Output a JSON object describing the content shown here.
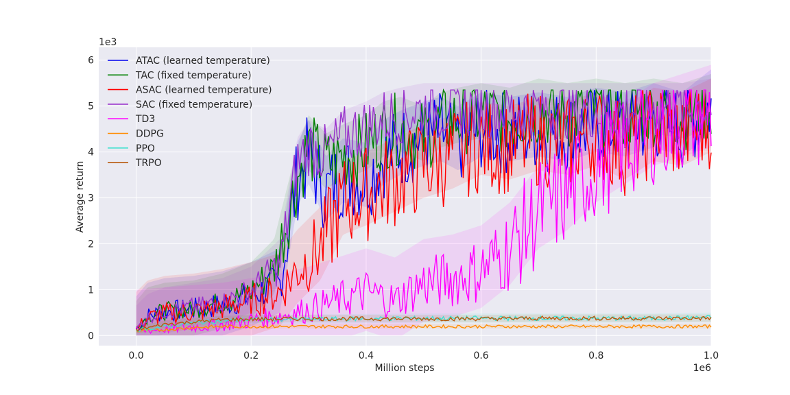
{
  "chart_data": {
    "type": "line",
    "title": "",
    "xlabel": "Million steps",
    "ylabel": "Average return",
    "x_offset_label": "1e6",
    "y_offset_label": "1e3",
    "xlim": [
      -0.065,
      1.0
    ],
    "ylim": [
      -0.22,
      6.28
    ],
    "xticks": [
      0.0,
      0.2,
      0.4,
      0.6,
      0.8,
      1.0
    ],
    "xtick_labels": [
      "0.0",
      "0.2",
      "0.4",
      "0.6",
      "0.8",
      "1.0"
    ],
    "yticks": [
      0,
      1,
      2,
      3,
      4,
      5,
      6
    ],
    "ytick_labels": [
      "0",
      "1",
      "2",
      "3",
      "4",
      "5",
      "6"
    ],
    "grid": true,
    "background": "#eaeaf2",
    "legend_position": "top-left",
    "series": [
      {
        "name": "ATAC (learned temperature)",
        "color": "#0000ee",
        "x": [
          0.0,
          0.02,
          0.05,
          0.1,
          0.15,
          0.2,
          0.25,
          0.28,
          0.3,
          0.33,
          0.36,
          0.4,
          0.43,
          0.46,
          0.5,
          0.53,
          0.56,
          0.6,
          0.65,
          0.7,
          0.75,
          0.8,
          0.85,
          0.9,
          0.95,
          1.0
        ],
        "y": [
          0.15,
          0.45,
          0.55,
          0.6,
          0.7,
          0.9,
          1.2,
          3.5,
          4.0,
          3.2,
          3.6,
          3.5,
          4.0,
          4.2,
          4.4,
          4.5,
          4.3,
          4.6,
          4.5,
          4.6,
          4.5,
          4.7,
          4.6,
          4.8,
          4.6,
          5.1
        ],
        "band": 0.7
      },
      {
        "name": "TAC (fixed temperature)",
        "color": "#008000",
        "x": [
          0.0,
          0.02,
          0.05,
          0.1,
          0.15,
          0.2,
          0.24,
          0.28,
          0.3,
          0.33,
          0.36,
          0.4,
          0.43,
          0.46,
          0.5,
          0.53,
          0.56,
          0.6,
          0.65,
          0.7,
          0.75,
          0.8,
          0.85,
          0.9,
          0.95,
          1.0
        ],
        "y": [
          0.15,
          0.45,
          0.55,
          0.6,
          0.75,
          1.0,
          1.5,
          3.5,
          4.2,
          3.8,
          4.0,
          4.2,
          4.5,
          4.6,
          4.4,
          4.7,
          4.8,
          4.9,
          4.8,
          5.0,
          4.9,
          5.0,
          4.9,
          5.0,
          4.9,
          5.1
        ],
        "band": 0.6
      },
      {
        "name": "ASAC (learned temperature)",
        "color": "#ff0000",
        "x": [
          0.0,
          0.02,
          0.05,
          0.1,
          0.15,
          0.2,
          0.25,
          0.28,
          0.32,
          0.36,
          0.4,
          0.45,
          0.5,
          0.55,
          0.6,
          0.65,
          0.7,
          0.75,
          0.8,
          0.85,
          0.9,
          0.95,
          1.0
        ],
        "y": [
          0.15,
          0.4,
          0.5,
          0.55,
          0.65,
          0.8,
          1.0,
          1.5,
          2.0,
          3.0,
          3.2,
          3.5,
          3.8,
          4.0,
          4.3,
          4.2,
          4.4,
          4.3,
          4.5,
          4.2,
          4.6,
          4.5,
          4.8
        ],
        "band": 0.8
      },
      {
        "name": "SAC (fixed temperature)",
        "color": "#9932cc",
        "x": [
          0.0,
          0.02,
          0.05,
          0.1,
          0.15,
          0.2,
          0.25,
          0.28,
          0.3,
          0.33,
          0.36,
          0.4,
          0.43,
          0.46,
          0.5,
          0.55,
          0.6,
          0.65,
          0.7,
          0.75,
          0.8,
          0.85,
          0.9,
          0.95,
          1.0
        ],
        "y": [
          0.15,
          0.4,
          0.55,
          0.65,
          0.75,
          1.0,
          1.6,
          3.8,
          4.2,
          4.0,
          4.4,
          4.6,
          4.8,
          4.9,
          5.0,
          5.0,
          5.0,
          5.0,
          5.0,
          5.0,
          5.0,
          5.0,
          5.0,
          5.0,
          5.1
        ],
        "band": 0.5
      },
      {
        "name": "TD3",
        "color": "#ff00ff",
        "x": [
          0.0,
          0.05,
          0.1,
          0.15,
          0.2,
          0.25,
          0.3,
          0.35,
          0.4,
          0.45,
          0.5,
          0.55,
          0.6,
          0.65,
          0.7,
          0.75,
          0.8,
          0.85,
          0.9,
          0.95,
          1.0
        ],
        "y": [
          0.1,
          0.15,
          0.2,
          0.25,
          0.35,
          0.45,
          0.6,
          0.8,
          1.0,
          0.8,
          1.2,
          1.3,
          1.5,
          2.0,
          2.8,
          3.2,
          3.8,
          4.2,
          4.6,
          4.8,
          5.0
        ],
        "band": 0.9
      },
      {
        "name": "DDPG",
        "color": "#ff8c00",
        "x": [
          0.0,
          0.05,
          0.1,
          0.15,
          0.2,
          0.3,
          0.4,
          0.5,
          0.6,
          0.7,
          0.8,
          0.9,
          1.0
        ],
        "y": [
          0.1,
          0.13,
          0.18,
          0.2,
          0.2,
          0.2,
          0.2,
          0.2,
          0.2,
          0.2,
          0.2,
          0.2,
          0.2
        ],
        "band": 0.05
      },
      {
        "name": "PPO",
        "color": "#40e0d0",
        "x": [
          0.0,
          0.05,
          0.1,
          0.15,
          0.2,
          0.3,
          0.4,
          0.5,
          0.6,
          0.7,
          0.8,
          0.9,
          1.0
        ],
        "y": [
          0.12,
          0.2,
          0.28,
          0.33,
          0.35,
          0.36,
          0.37,
          0.38,
          0.38,
          0.38,
          0.38,
          0.38,
          0.4
        ],
        "band": 0.1
      },
      {
        "name": "TRPO",
        "color": "#b8580b",
        "x": [
          0.0,
          0.05,
          0.1,
          0.15,
          0.2,
          0.3,
          0.4,
          0.5,
          0.6,
          0.7,
          0.8,
          0.9,
          1.0
        ],
        "y": [
          0.12,
          0.25,
          0.3,
          0.35,
          0.36,
          0.37,
          0.37,
          0.37,
          0.37,
          0.38,
          0.38,
          0.38,
          0.38
        ],
        "band": 0.08
      }
    ]
  }
}
